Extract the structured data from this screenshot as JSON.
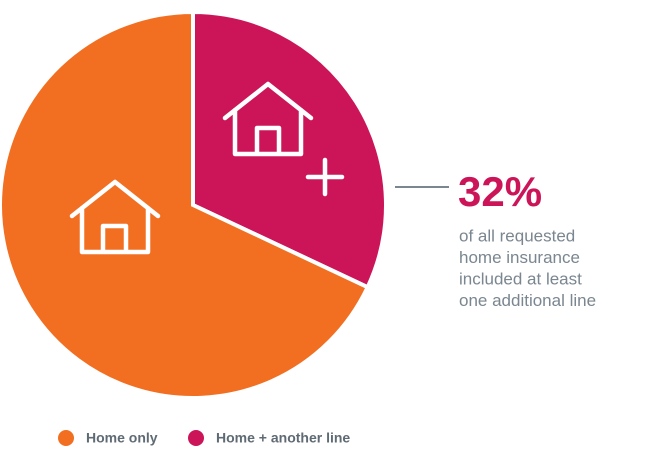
{
  "chart_data": {
    "type": "pie",
    "categories": [
      "Home only",
      "Home + another line"
    ],
    "values": [
      68,
      32
    ],
    "value_labels": [
      null,
      "32%"
    ],
    "colors": [
      "#f26f21",
      "#cc1558"
    ],
    "annotation": [
      "of all requested",
      "home insurance",
      "included at least",
      "one additional line"
    ]
  }
}
